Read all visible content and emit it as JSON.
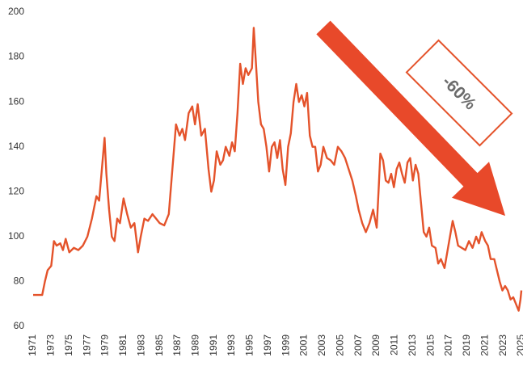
{
  "chart_data": {
    "type": "line",
    "color": "#e4532b",
    "annotation": "-60%",
    "xlim": [
      1971,
      2025
    ],
    "xticks": [
      1971,
      1973,
      1975,
      1977,
      1979,
      1981,
      1983,
      1985,
      1987,
      1989,
      1991,
      1993,
      1995,
      1997,
      1999,
      2001,
      2003,
      2005,
      2007,
      2009,
      2011,
      2013,
      2015,
      2017,
      2019,
      2021,
      2023,
      2025
    ],
    "ylim": [
      60,
      200
    ],
    "yticks": [
      60,
      80,
      100,
      120,
      140,
      160,
      180,
      200
    ],
    "grid": false,
    "x": [
      1971,
      1972,
      1972.3,
      1972.6,
      1973,
      1973.3,
      1973.6,
      1974,
      1974.3,
      1974.6,
      1975,
      1975.5,
      1976,
      1976.5,
      1977,
      1977.5,
      1978,
      1978.3,
      1978.6,
      1978.9,
      1979.1,
      1979.4,
      1979.7,
      1980,
      1980.3,
      1980.6,
      1981,
      1981.4,
      1981.8,
      1982.2,
      1982.6,
      1982.9,
      1983.3,
      1983.7,
      1984.2,
      1984.6,
      1985,
      1985.5,
      1986,
      1986.4,
      1986.8,
      1987.2,
      1987.5,
      1987.8,
      1988.2,
      1988.6,
      1988.9,
      1989.2,
      1989.6,
      1990,
      1990.4,
      1990.7,
      1991,
      1991.3,
      1991.7,
      1992,
      1992.3,
      1992.7,
      1993,
      1993.3,
      1993.6,
      1993.9,
      1994.2,
      1994.5,
      1994.8,
      1995.2,
      1995.4,
      1995.6,
      1995.9,
      1996.2,
      1996.5,
      1996.8,
      1997.1,
      1997.4,
      1997.7,
      1998,
      1998.3,
      1998.6,
      1998.9,
      1999.2,
      1999.5,
      1999.8,
      2000.1,
      2000.4,
      2000.7,
      2001,
      2001.3,
      2001.6,
      2001.9,
      2002.2,
      2002.5,
      2002.8,
      2003.1,
      2003.5,
      2003.9,
      2004.3,
      2004.7,
      2005.1,
      2005.5,
      2005.9,
      2006.3,
      2006.7,
      2007,
      2007.4,
      2007.8,
      2008.2,
      2008.6,
      2009,
      2009.2,
      2009.4,
      2009.7,
      2010,
      2010.3,
      2010.6,
      2010.9,
      2011.2,
      2011.5,
      2011.8,
      2012.1,
      2012.4,
      2012.7,
      2013,
      2013.3,
      2013.6,
      2013.9,
      2014.2,
      2014.5,
      2014.8,
      2015.1,
      2015.5,
      2015.8,
      2016.1,
      2016.5,
      2016.8,
      2017.1,
      2017.4,
      2017.7,
      2018,
      2018.4,
      2018.8,
      2019.2,
      2019.6,
      2020,
      2020.3,
      2020.6,
      2021,
      2021.3,
      2021.6,
      2022,
      2022.3,
      2022.6,
      2022.9,
      2023.2,
      2023.5,
      2023.8,
      2024.1,
      2024.4,
      2024.7,
      2024.9,
      2025
    ],
    "values": [
      74,
      74,
      80,
      85,
      87,
      98,
      96,
      97,
      94,
      99,
      93,
      95,
      94,
      96,
      100,
      108,
      118,
      116,
      130,
      144,
      128,
      112,
      100,
      98,
      108,
      106,
      117,
      110,
      104,
      106,
      93,
      100,
      108,
      107,
      110,
      108,
      106,
      105,
      110,
      130,
      150,
      145,
      148,
      143,
      155,
      158,
      150,
      159,
      145,
      148,
      130,
      120,
      125,
      138,
      132,
      134,
      140,
      136,
      142,
      138,
      155,
      177,
      168,
      175,
      172,
      175,
      193,
      180,
      160,
      150,
      148,
      140,
      129,
      140,
      142,
      135,
      143,
      130,
      123,
      140,
      146,
      160,
      168,
      160,
      163,
      158,
      164,
      145,
      140,
      140,
      129,
      132,
      140,
      135,
      134,
      132,
      140,
      138,
      135,
      130,
      125,
      118,
      112,
      106,
      102,
      106,
      112,
      104,
      120,
      137,
      134,
      125,
      124,
      128,
      122,
      130,
      133,
      128,
      124,
      133,
      135,
      125,
      132,
      128,
      115,
      102,
      100,
      104,
      96,
      95,
      88,
      90,
      86,
      93,
      100,
      107,
      102,
      96,
      95,
      94,
      98,
      95,
      100,
      97,
      102,
      98,
      96,
      90,
      90,
      85,
      80,
      76,
      78,
      76,
      72,
      73,
      70,
      67,
      72,
      76
    ]
  }
}
